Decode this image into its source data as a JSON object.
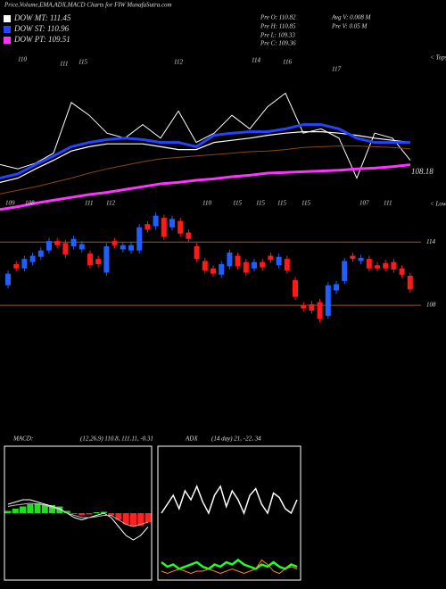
{
  "chart_data": [
    {
      "type": "line",
      "title": "Price,Volume,EMA,ADX,MACD Charts for FIW MunafaSutra.com",
      "info": [
        "Pre  O: 110.82",
        "Pre  H: 110.85",
        "Pre  L: 109.33",
        "Pre  C: 109.36",
        "Avg V: 0.008 M",
        "Pre  V: 0.05 M"
      ],
      "tops": [
        110,
        111,
        115,
        112,
        114,
        116,
        117
      ],
      "tops_label": "< Tops",
      "lows": [
        109,
        108,
        111,
        112,
        110,
        115,
        115,
        115,
        115,
        107,
        111
      ],
      "lows_label": "< Lows",
      "annotation": "108.18",
      "ylim": [
        100,
        124
      ],
      "series": [
        {
          "color": "#ffffff",
          "values": [
            108.2,
            107.6,
            108.4,
            109.8,
            116.9,
            115.1,
            112.6,
            111.9,
            113.8,
            111.9,
            115.7,
            111.3,
            112.6,
            115.1,
            113.2,
            116.3,
            118.2,
            112.6,
            113.2,
            111.9,
            106.3,
            112.6,
            111.9,
            108.8
          ]
        },
        {
          "color": "#8b4513",
          "values": [
            104.1,
            104.6,
            105.1,
            105.7,
            106.3,
            107.0,
            107.6,
            108.1,
            108.6,
            109.0,
            109.2,
            109.4,
            109.6,
            109.8,
            110.0,
            110.1,
            110.3,
            110.6,
            110.7,
            110.8,
            110.8,
            110.7,
            110.6,
            110.4
          ]
        },
        {
          "name": "DOW MT: 111.45",
          "color": "#ffffff",
          "values": [
            105.7,
            106.3,
            107.6,
            108.8,
            110.1,
            110.7,
            111.1,
            111.1,
            111.1,
            110.7,
            110.3,
            110.3,
            111.3,
            111.6,
            111.9,
            112.3,
            112.6,
            112.8,
            112.8,
            112.6,
            112.3,
            111.9,
            111.6,
            111.3
          ]
        },
        {
          "name": "DOW ST: 110.96",
          "color": "#2244ff",
          "values": [
            106.3,
            106.9,
            108.2,
            109.4,
            110.7,
            111.3,
            111.7,
            111.9,
            111.7,
            111.3,
            111.3,
            110.7,
            112.3,
            112.6,
            112.8,
            112.8,
            113.2,
            113.8,
            113.8,
            113.2,
            111.9,
            111.3,
            111.3,
            111.3
          ]
        },
        {
          "name": "DOW PT: 109.51",
          "color": "#ff33ff",
          "values": [
            101.9,
            102.3,
            102.8,
            103.2,
            103.6,
            104.0,
            104.3,
            104.7,
            105.1,
            105.5,
            105.7,
            106.0,
            106.2,
            106.5,
            106.7,
            107.0,
            107.1,
            107.2,
            107.3,
            107.4,
            107.6,
            107.7,
            107.9,
            108.18
          ]
        }
      ]
    },
    {
      "type": "candlestick",
      "up_color": "#1f5fff",
      "down_color": "#ff1a1a",
      "ylim": [
        105,
        118
      ],
      "yticks": [
        108,
        114
      ],
      "grid": true,
      "open": [
        109.9,
        111.9,
        111.5,
        112.1,
        112.6,
        113.2,
        114.1,
        113.9,
        113.6,
        113.3,
        112.9,
        112.4,
        111.1,
        114.1,
        113.3,
        113.2,
        113.2,
        115.7,
        115.5,
        116.3,
        115.4,
        116.0,
        114.9,
        113.6,
        112.2,
        111.5,
        110.9,
        111.7,
        112.7,
        112.1,
        111.5,
        112.1,
        112.7,
        111.8,
        112.4,
        110.4,
        108.0,
        108.1,
        108.3,
        107.0,
        109.4,
        110.3,
        112.7,
        112.2,
        112.4,
        111.8,
        112.0,
        112.1,
        111.5,
        110.8
      ],
      "high": [
        111.3,
        112.2,
        112.7,
        113.0,
        113.5,
        114.4,
        114.4,
        114.2,
        114.6,
        114.1,
        113.2,
        112.7,
        113.9,
        114.4,
        114.0,
        114.0,
        115.7,
        116.0,
        116.8,
        116.6,
        116.5,
        116.3,
        115.2,
        113.9,
        112.5,
        111.8,
        112.2,
        113.3,
        113.0,
        112.4,
        112.4,
        112.4,
        113.0,
        112.9,
        112.7,
        110.7,
        108.3,
        108.4,
        108.6,
        110.2,
        110.3,
        112.5,
        113.0,
        112.8,
        112.7,
        112.1,
        112.3,
        112.4,
        111.8,
        111.1
      ],
      "low": [
        109.6,
        111.2,
        111.2,
        111.8,
        112.3,
        112.9,
        113.4,
        112.5,
        113.3,
        113.0,
        111.5,
        111.6,
        110.8,
        113.4,
        113.0,
        112.9,
        112.9,
        114.9,
        115.2,
        114.2,
        115.1,
        114.5,
        114.0,
        112.1,
        111.0,
        110.7,
        110.6,
        111.4,
        111.4,
        110.8,
        111.2,
        111.3,
        112.0,
        111.5,
        111.0,
        108.5,
        107.4,
        107.2,
        106.4,
        106.7,
        109.1,
        110.0,
        112.1,
        111.9,
        111.2,
        111.2,
        111.2,
        111.1,
        110.6,
        109.2
      ],
      "close": [
        111.0,
        111.5,
        112.4,
        112.7,
        113.2,
        114.1,
        113.7,
        112.8,
        114.3,
        113.8,
        111.8,
        111.9,
        113.6,
        113.7,
        113.7,
        113.7,
        115.4,
        115.2,
        116.5,
        114.5,
        116.2,
        114.8,
        114.3,
        112.4,
        111.3,
        111.0,
        111.9,
        113.0,
        111.7,
        111.1,
        112.1,
        111.6,
        112.3,
        112.6,
        111.3,
        108.8,
        107.7,
        107.5,
        106.7,
        109.9,
        110.0,
        112.2,
        112.4,
        112.5,
        111.5,
        111.5,
        111.5,
        111.4,
        110.9,
        109.5
      ]
    },
    {
      "type": "macd",
      "title": "MACD:",
      "subtitle": "(12,26,9) 110.8, 111.11, -0.31",
      "ylim": [
        -1.5,
        1.5
      ],
      "histogram": {
        "up_color": "#22dd22",
        "down_color": "#ff2222",
        "values": [
          0.05,
          0.1,
          0.15,
          0.2,
          0.22,
          0.2,
          0.18,
          0.15,
          0.05,
          -0.02,
          -0.05,
          -0.03,
          0.02,
          0.03,
          -0.05,
          -0.15,
          -0.25,
          -0.3,
          -0.28,
          -0.2
        ]
      },
      "series": [
        {
          "color": "#ffffff",
          "values": [
            0.2,
            0.25,
            0.3,
            0.3,
            0.25,
            0.2,
            0.15,
            0.1,
            0.0,
            -0.1,
            -0.15,
            -0.1,
            -0.05,
            0.0,
            -0.1,
            -0.3,
            -0.5,
            -0.6,
            -0.5,
            -0.31
          ]
        },
        {
          "color": "#bbbbbb",
          "values": [
            0.15,
            0.18,
            0.2,
            0.22,
            0.2,
            0.18,
            0.12,
            0.08,
            0.0,
            -0.05,
            -0.1,
            -0.1,
            -0.08,
            -0.05,
            -0.05,
            -0.15,
            -0.25,
            -0.3,
            -0.25,
            -0.2
          ]
        }
      ]
    },
    {
      "type": "adx",
      "title": "ADX",
      "subtitle": "(14 day) 21, -22, 34",
      "ylim": [
        0,
        60
      ],
      "series": [
        {
          "color": "#ffffff",
          "values": [
            30,
            34,
            38,
            32,
            40,
            36,
            42,
            35,
            30,
            38,
            42,
            33,
            40,
            36,
            30,
            38,
            41,
            34,
            30,
            39,
            37,
            32,
            30,
            36
          ]
        },
        {
          "color": "#22ff22",
          "values": [
            8,
            6,
            7,
            5,
            6,
            7,
            8,
            6,
            5,
            7,
            6,
            8,
            7,
            9,
            7,
            6,
            5,
            7,
            6,
            8,
            6,
            5,
            7,
            6
          ]
        },
        {
          "color": "#ff8800",
          "values": [
            4,
            3,
            4,
            5,
            4,
            3,
            4,
            4,
            5,
            4,
            3,
            4,
            5,
            4,
            3,
            4,
            5,
            9,
            7,
            4,
            3,
            5,
            6,
            5
          ]
        }
      ]
    }
  ]
}
